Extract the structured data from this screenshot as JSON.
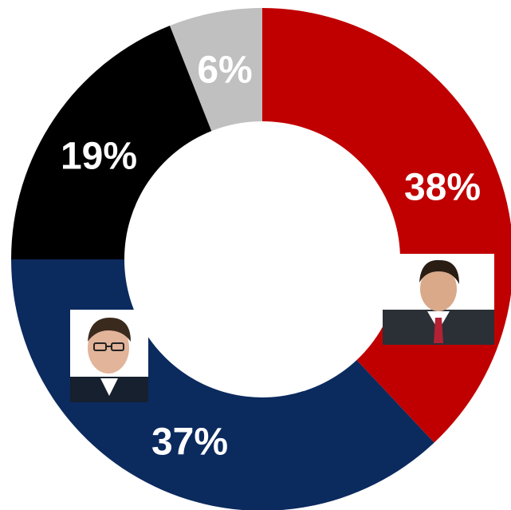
{
  "chart_data": {
    "type": "pie",
    "subtype": "donut",
    "slices": [
      {
        "label": "38%",
        "value": 38,
        "color": "#c00000"
      },
      {
        "label": "37%",
        "value": 37,
        "color": "#0b2a5e"
      },
      {
        "label": "19%",
        "value": 19,
        "color": "#000000"
      },
      {
        "label": "6%",
        "value": 6,
        "color": "#c0c0c0"
      }
    ]
  },
  "images": [
    {
      "name": "photo-red-slice",
      "icon": "person-portrait"
    },
    {
      "name": "photo-blue-slice",
      "icon": "person-portrait"
    }
  ]
}
